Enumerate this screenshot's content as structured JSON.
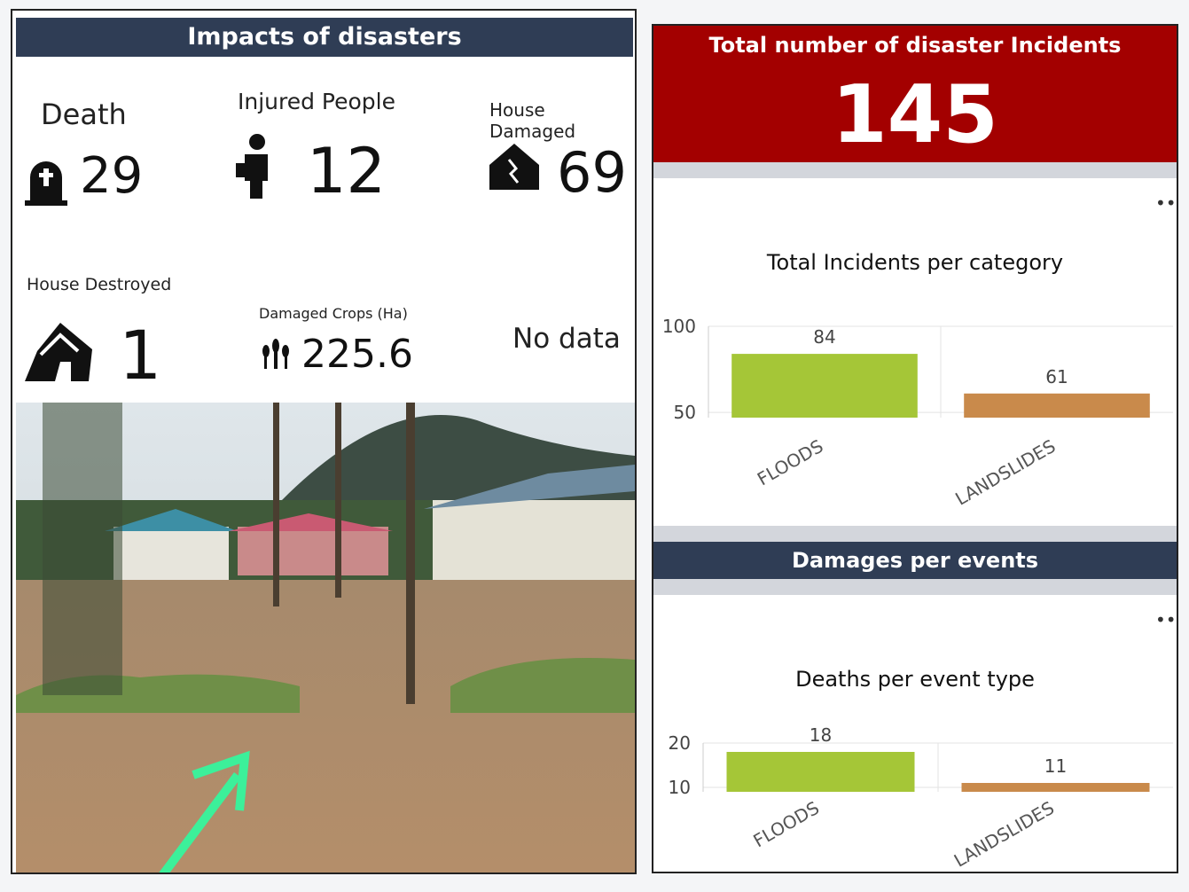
{
  "impacts": {
    "title": "Impacts of disasters",
    "stats": [
      {
        "label": "Death",
        "value": 29
      },
      {
        "label": "Injured People",
        "value": 12
      },
      {
        "label": "House Damaged",
        "value": 69
      },
      {
        "label": "House Destroyed",
        "value": 1
      },
      {
        "label": "Damaged Crops (Ha)",
        "value": 225.6
      }
    ],
    "no_data": "No data"
  },
  "total": {
    "title": "Total number of disaster Incidents",
    "value": 145
  },
  "section": "Damages per events",
  "chart_data": [
    {
      "type": "bar",
      "title": "Total Incidents per category",
      "categories": [
        "FLOODS",
        "LANDSLIDES"
      ],
      "values": [
        84,
        61
      ],
      "colors": [
        "#a5c637",
        "#c98a4b"
      ],
      "ylim": [
        47,
        100
      ],
      "yticks": [
        50,
        100
      ],
      "grid": true
    },
    {
      "type": "bar",
      "title": "Deaths per event type",
      "categories": [
        "FLOODS",
        "LANDSLIDES"
      ],
      "values": [
        18,
        11
      ],
      "colors": [
        "#a5c637",
        "#c98a4b"
      ],
      "ylim": [
        9,
        20
      ],
      "yticks": [
        10,
        20
      ],
      "grid": true
    }
  ]
}
